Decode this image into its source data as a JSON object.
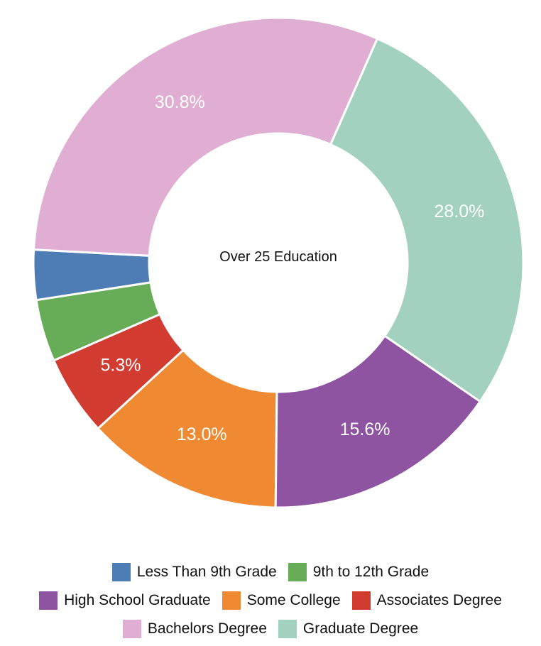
{
  "chart_data": {
    "type": "pie",
    "variant": "donut",
    "center_title": "Over 25 Education",
    "legend_placement": "bottom",
    "series": [
      {
        "name": "Less Than 9th Grade",
        "value": 3.3,
        "label": "",
        "color": "#4e7db5"
      },
      {
        "name": "9th to 12th Grade",
        "value": 4.1,
        "label": "",
        "color": "#67ac56"
      },
      {
        "name": "Associates Degree",
        "value": 5.3,
        "label": "5.3%",
        "color": "#d13b30"
      },
      {
        "name": "Some College",
        "value": 13.0,
        "label": "13.0%",
        "color": "#ef8a33"
      },
      {
        "name": "High School Graduate",
        "value": 15.6,
        "label": "15.6%",
        "color": "#8e53a1"
      },
      {
        "name": "Graduate Degree",
        "value": 28.0,
        "label": "28.0%",
        "color": "#a3d1bf"
      },
      {
        "name": "Bachelors Degree",
        "value": 30.8,
        "label": "30.8%",
        "color": "#e0aed2"
      }
    ],
    "legend_rows": [
      [
        "Less Than 9th Grade",
        "9th to 12th Grade"
      ],
      [
        "High School Graduate",
        "Some College",
        "Associates Degree"
      ],
      [
        "Bachelors Degree",
        "Graduate Degree"
      ]
    ]
  }
}
